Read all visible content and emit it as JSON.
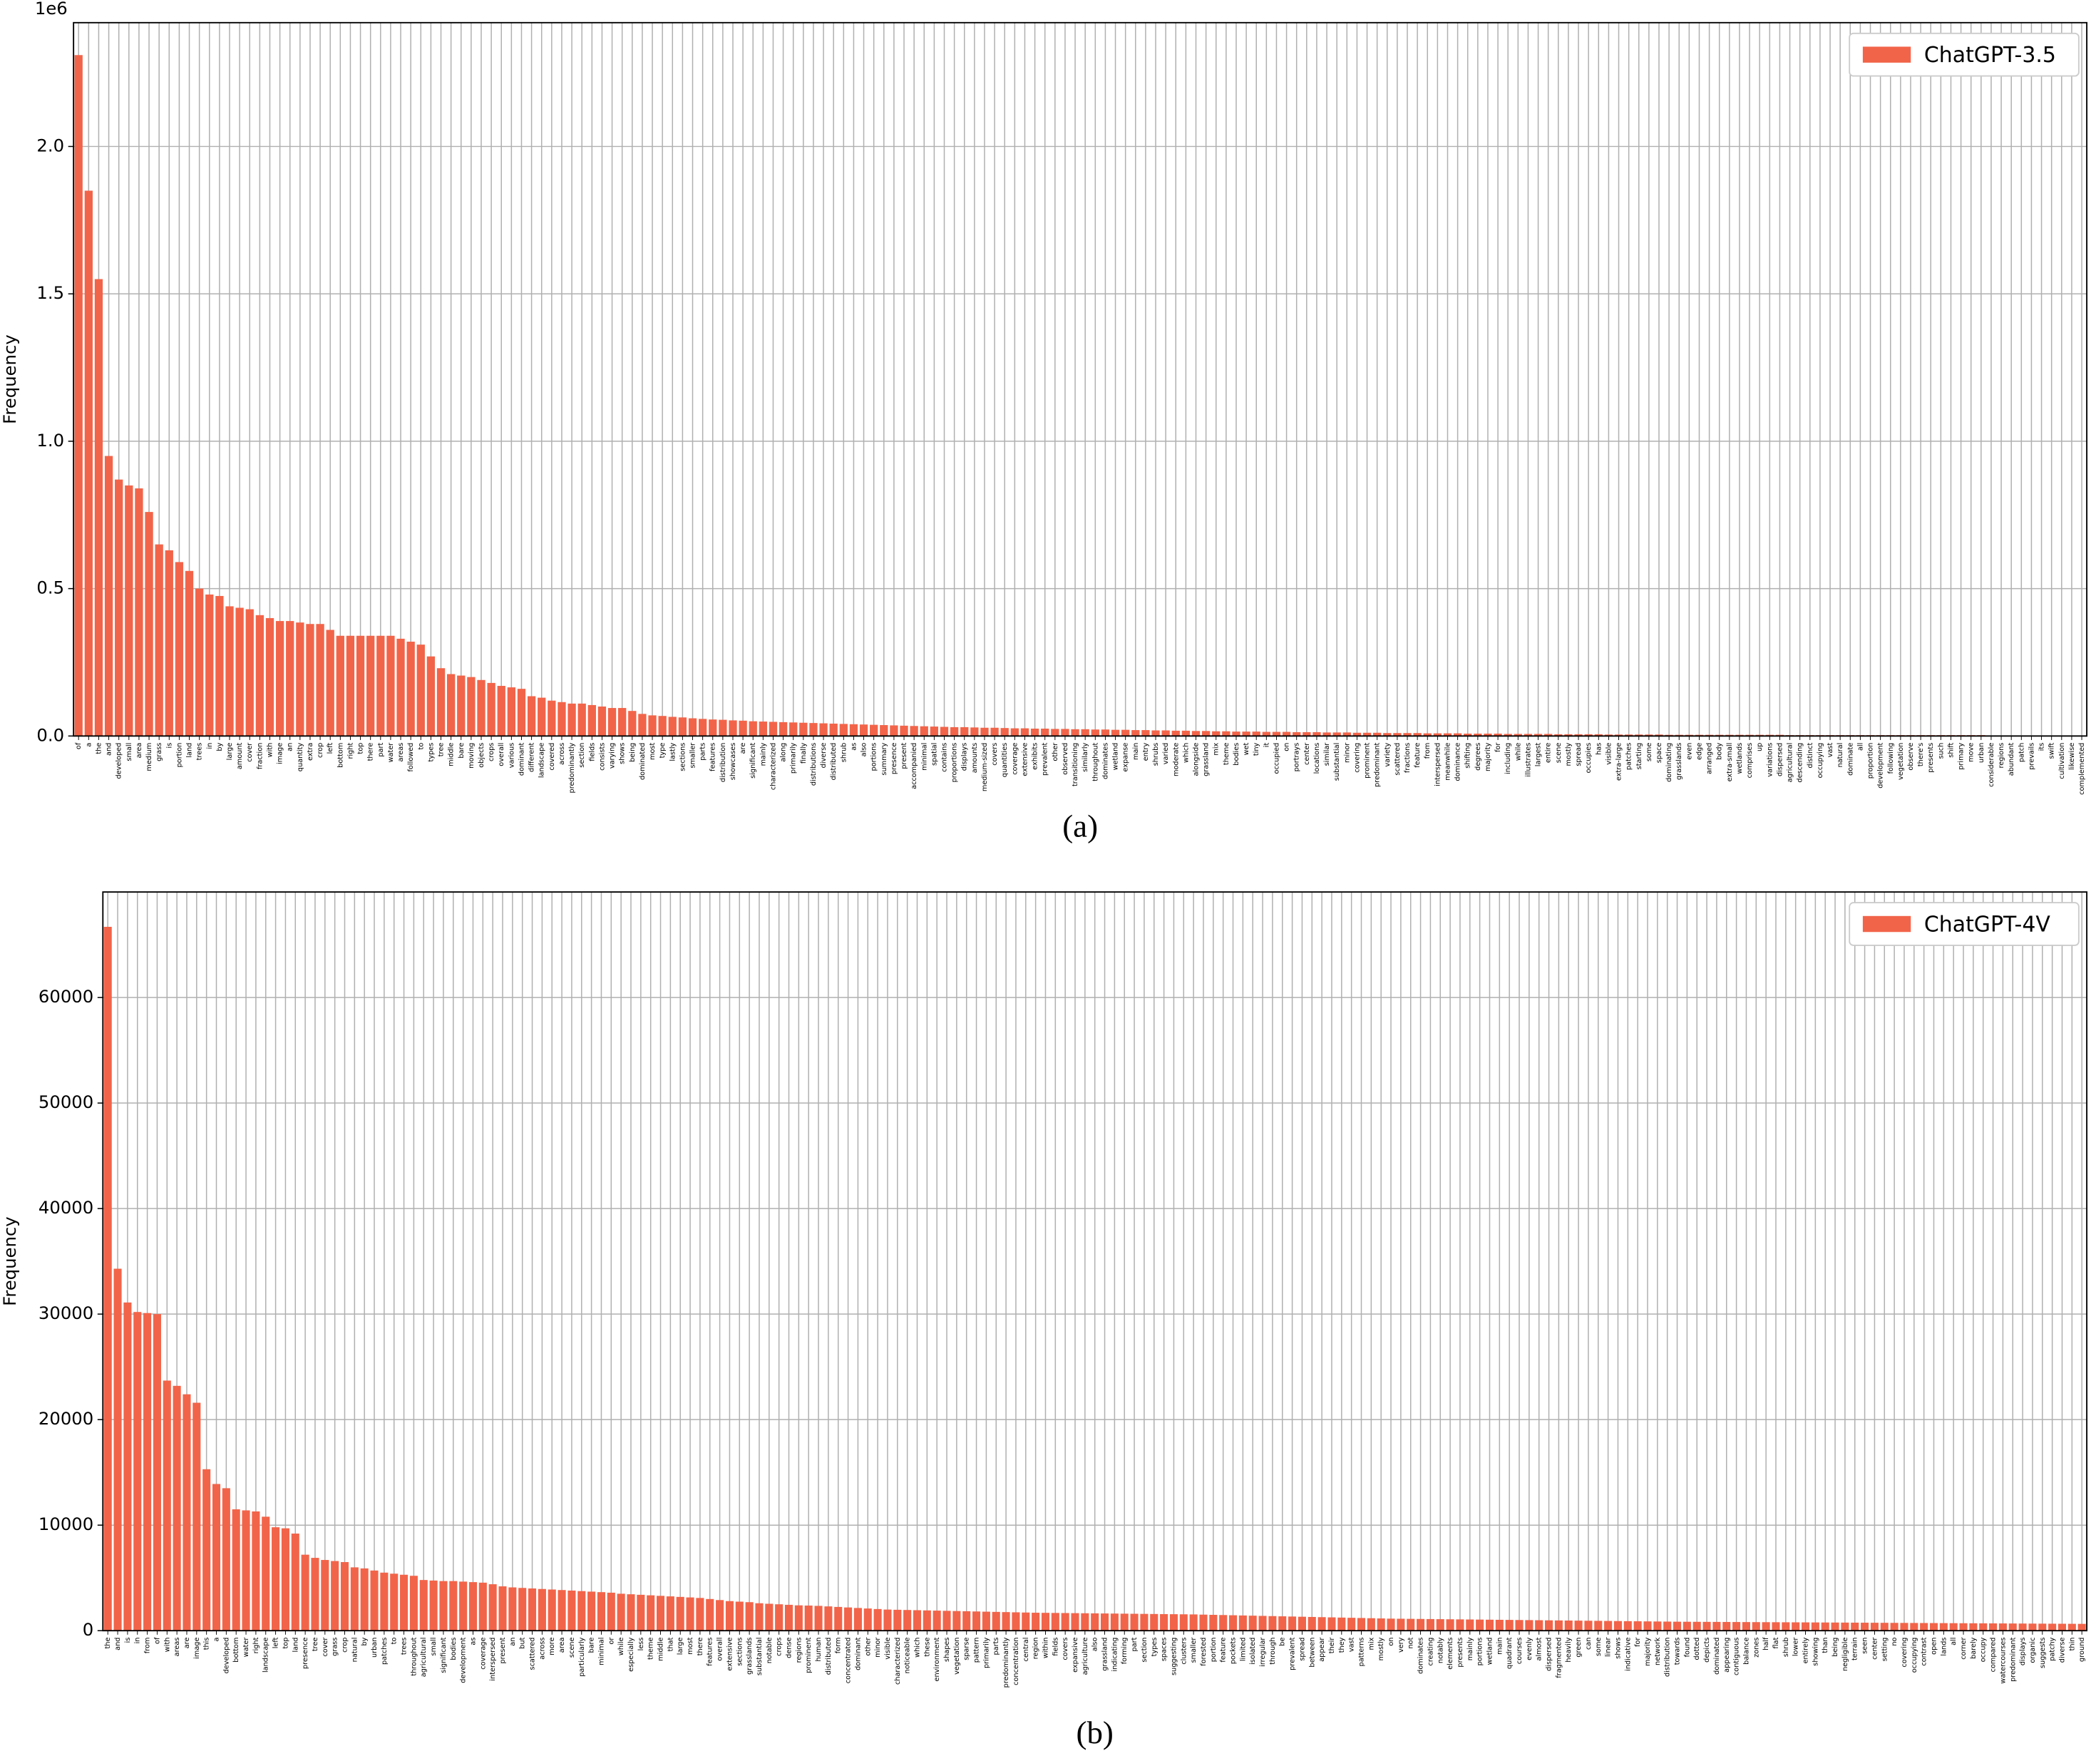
{
  "chart_data": [
    {
      "type": "bar",
      "ylabel": "Frequency",
      "offset_label": "1e6",
      "caption": "(a)",
      "legend": "upper right",
      "grid": true,
      "ylim": [
        0,
        2.42
      ],
      "yticks": [
        {
          "value": 0,
          "label": "0.0"
        },
        0.5,
        {
          "value": 1,
          "label": "1.0"
        },
        1.5,
        {
          "value": 2,
          "label": "2.0"
        }
      ],
      "categories": [
        "of",
        "a",
        "the",
        "and",
        "developed",
        "small",
        "area",
        "medium",
        "grass",
        "is",
        "portion",
        "land",
        "trees",
        "in",
        "by",
        "large",
        "amount",
        "cover",
        "fraction",
        "with",
        "image",
        "an",
        "quantity",
        "extra",
        "crop",
        "left",
        "bottom",
        "right",
        "top",
        "there",
        "part",
        "water",
        "areas",
        "followed",
        "to",
        "types",
        "tree",
        "middle",
        "bare",
        "moving",
        "objects",
        "crops",
        "overall",
        "various",
        "dominant",
        "different",
        "landscape",
        "covered",
        "across",
        "predominantly",
        "section",
        "fields",
        "consists",
        "varying",
        "shows",
        "being",
        "dominated",
        "most",
        "type",
        "lastly",
        "sections",
        "smaller",
        "parts",
        "features",
        "distribution",
        "showcases",
        "are",
        "significant",
        "mainly",
        "characterized",
        "along",
        "primarily",
        "finally",
        "distributions",
        "diverse",
        "distributed",
        "shrub",
        "as",
        "also",
        "portions",
        "summary",
        "presence",
        "present",
        "accompanied",
        "minimal",
        "spatial",
        "contains",
        "proportions",
        "displays",
        "amounts",
        "medium-sized",
        "covers",
        "quantities",
        "coverage",
        "extensive",
        "exhibits",
        "prevalent",
        "other",
        "observed",
        "transitioning",
        "similarly",
        "throughout",
        "dominates",
        "wetland",
        "expanse",
        "main",
        "entry",
        "shrubs",
        "varied",
        "moderate",
        "which",
        "alongside",
        "grassland",
        "mix",
        "theme",
        "bodies",
        "wet",
        "tiny",
        "it",
        "occupied",
        "on",
        "portrays",
        "center",
        "locations",
        "similar",
        "substantial",
        "minor",
        "covering",
        "prominent",
        "predominant",
        "variety",
        "scattered",
        "fractions",
        "feature",
        "from",
        "interspersed",
        "meanwhile",
        "dominance",
        "shifting",
        "degrees",
        "majority",
        "for",
        "including",
        "while",
        "illustrates",
        "largest",
        "entire",
        "scene",
        "mostly",
        "spread",
        "occupies",
        "has",
        "visible",
        "extra-large",
        "patches",
        "starting",
        "some",
        "space",
        "dominating",
        "grasslands",
        "even",
        "edge",
        "arranged",
        "body",
        "extra-small",
        "wetlands",
        "comprises",
        "up",
        "variations",
        "dispersed",
        "agricultural",
        "descending",
        "distinct",
        "occupying",
        "vast",
        "natural",
        "dominate",
        "all",
        "proportion",
        "development",
        "following",
        "vegetation",
        "observe",
        "there's",
        "presents",
        "such",
        "shift",
        "primary",
        "move",
        "urban",
        "considerable",
        "regions",
        "abundant",
        "patch",
        "prevails",
        "its",
        "swift",
        "cultivation",
        "likewise",
        "complemented"
      ],
      "series": [
        {
          "name": "ChatGPT-3.5",
          "color": "#f26449",
          "values": [
            2.31,
            1.85,
            1.55,
            0.95,
            0.87,
            0.85,
            0.84,
            0.76,
            0.65,
            0.63,
            0.59,
            0.56,
            0.5,
            0.48,
            0.475,
            0.44,
            0.435,
            0.43,
            0.41,
            0.4,
            0.39,
            0.39,
            0.385,
            0.38,
            0.38,
            0.36,
            0.34,
            0.34,
            0.34,
            0.34,
            0.34,
            0.34,
            0.33,
            0.32,
            0.31,
            0.27,
            0.23,
            0.21,
            0.205,
            0.2,
            0.19,
            0.18,
            0.17,
            0.165,
            0.16,
            0.135,
            0.13,
            0.12,
            0.115,
            0.11,
            0.11,
            0.105,
            0.1,
            0.095,
            0.095,
            0.085,
            0.075,
            0.07,
            0.068,
            0.065,
            0.063,
            0.06,
            0.058,
            0.056,
            0.055,
            0.053,
            0.052,
            0.05,
            0.049,
            0.048,
            0.047,
            0.046,
            0.045,
            0.044,
            0.043,
            0.042,
            0.041,
            0.04,
            0.039,
            0.038,
            0.037,
            0.036,
            0.035,
            0.034,
            0.033,
            0.032,
            0.031,
            0.03,
            0.03,
            0.029,
            0.028,
            0.028,
            0.027,
            0.026,
            0.026,
            0.025,
            0.025,
            0.024,
            0.024,
            0.023,
            0.023,
            0.022,
            0.022,
            0.021,
            0.021,
            0.02,
            0.02,
            0.019,
            0.019,
            0.018,
            0.018,
            0.017,
            0.017,
            0.016,
            0.016,
            0.015,
            0.015,
            0.015,
            0.014,
            0.014,
            0.014,
            0.013,
            0.013,
            0.013,
            0.012,
            0.012,
            0.012,
            0.011,
            0.011,
            0.011,
            0.01,
            0.01,
            0.01,
            0.01,
            0.009,
            0.009,
            0.009,
            0.009,
            0.008,
            0.008,
            0.008,
            0.008,
            0.007,
            0.007,
            0.007,
            0.007,
            0.007,
            0.006,
            0.006,
            0.006,
            0.006,
            0.006,
            0.005,
            0.005,
            0.005,
            0.005,
            0.005,
            0.005,
            0.004,
            0.004,
            0.004,
            0.004,
            0.004,
            0.004,
            0.004,
            0.004,
            0.004,
            0.004,
            0.004,
            0.004,
            0.003,
            0.003,
            0.003,
            0.003,
            0.003,
            0.003,
            0.003,
            0.003,
            0.003,
            0.003,
            0.003,
            0.003,
            0.003,
            0.003,
            0.003,
            0.003,
            0.003,
            0.003,
            0.003,
            0.003,
            0.002,
            0.002,
            0.002,
            0.002,
            0.002,
            0.002,
            0.002,
            0.002,
            0.002,
            0.002
          ]
        }
      ]
    },
    {
      "type": "bar",
      "ylabel": "Frequency",
      "caption": "(b)",
      "legend": "upper right",
      "grid": true,
      "ylim": [
        0,
        70000
      ],
      "yticks": [
        0,
        10000,
        20000,
        30000,
        40000,
        50000,
        60000
      ],
      "categories": [
        "the",
        "and",
        "is",
        "in",
        "from",
        "of",
        "with",
        "areas",
        "are",
        "image",
        "this",
        "a",
        "developed",
        "bottom",
        "water",
        "right",
        "landscape",
        "left",
        "top",
        "land",
        "presence",
        "tree",
        "cover",
        "grass",
        "crop",
        "natural",
        "by",
        "urban",
        "patches",
        "to",
        "trees",
        "throughout",
        "agricultural",
        "small",
        "significant",
        "bodies",
        "development",
        "as",
        "coverage",
        "interspersed",
        "present",
        "an",
        "but",
        "scattered",
        "across",
        "more",
        "area",
        "scene",
        "particularly",
        "bare",
        "minimal",
        "or",
        "while",
        "especially",
        "less",
        "theme",
        "middle",
        "that",
        "large",
        "most",
        "there",
        "features",
        "overall",
        "extensive",
        "sections",
        "grasslands",
        "substantial",
        "notable",
        "crops",
        "dense",
        "regions",
        "prominent",
        "human",
        "distributed",
        "form",
        "concentrated",
        "dominant",
        "other",
        "minor",
        "visible",
        "characterized",
        "noticeable",
        "which",
        "these",
        "environment",
        "shapes",
        "vegetation",
        "sparse",
        "pattern",
        "primarily",
        "parts",
        "predominantly",
        "concentration",
        "central",
        "region",
        "within",
        "fields",
        "covers",
        "expansive",
        "agriculture",
        "also",
        "grassland",
        "indicating",
        "forming",
        "part",
        "section",
        "types",
        "spaces",
        "suggesting",
        "clusters",
        "smaller",
        "forested",
        "portion",
        "feature",
        "pockets",
        "limited",
        "isolated",
        "irregular",
        "through",
        "be",
        "prevalent",
        "spread",
        "between",
        "appear",
        "their",
        "they",
        "vast",
        "patterns",
        "mix",
        "mostly",
        "on",
        "very",
        "not",
        "dominates",
        "creating",
        "notably",
        "elements",
        "presents",
        "mainly",
        "portions",
        "wetland",
        "main",
        "quadrant",
        "courses",
        "evenly",
        "almost",
        "dispersed",
        "fragmented",
        "heavily",
        "green",
        "can",
        "some",
        "linear",
        "shows",
        "indicative",
        "for",
        "majority",
        "network",
        "distribution",
        "towards",
        "found",
        "dotted",
        "depicts",
        "dominated",
        "appearing",
        "contiguous",
        "balance",
        "zones",
        "half",
        "flat",
        "shrub",
        "lower",
        "entirely",
        "showing",
        "than",
        "being",
        "negligible",
        "terrain",
        "seen",
        "center",
        "setting",
        "no",
        "covering",
        "occupying",
        "contrast",
        "open",
        "lands",
        "all",
        "corner",
        "barely",
        "occupy",
        "compared",
        "watercourses",
        "predominant",
        "displays",
        "organic",
        "suggests",
        "patchy",
        "diverse",
        "thin",
        "ground"
      ],
      "series": [
        {
          "name": "ChatGPT-4V",
          "color": "#f26449",
          "values": [
            66700,
            34300,
            31100,
            30200,
            30100,
            30000,
            23700,
            23200,
            22400,
            21600,
            15300,
            13900,
            13500,
            11500,
            11400,
            11300,
            10800,
            9800,
            9700,
            9200,
            7200,
            6900,
            6700,
            6600,
            6500,
            6000,
            5900,
            5700,
            5500,
            5400,
            5300,
            5200,
            4800,
            4750,
            4700,
            4700,
            4650,
            4600,
            4550,
            4400,
            4200,
            4100,
            4050,
            4000,
            3950,
            3900,
            3850,
            3800,
            3750,
            3700,
            3650,
            3600,
            3500,
            3450,
            3400,
            3350,
            3300,
            3250,
            3200,
            3150,
            3100,
            3000,
            2900,
            2800,
            2750,
            2700,
            2600,
            2550,
            2500,
            2450,
            2400,
            2380,
            2350,
            2300,
            2250,
            2200,
            2150,
            2100,
            2050,
            2000,
            1980,
            1960,
            1940,
            1920,
            1900,
            1880,
            1860,
            1840,
            1820,
            1800,
            1780,
            1760,
            1740,
            1720,
            1700,
            1690,
            1680,
            1670,
            1660,
            1650,
            1640,
            1630,
            1620,
            1610,
            1600,
            1590,
            1580,
            1570,
            1560,
            1550,
            1540,
            1520,
            1500,
            1480,
            1460,
            1440,
            1420,
            1400,
            1380,
            1360,
            1340,
            1320,
            1300,
            1280,
            1260,
            1240,
            1220,
            1200,
            1180,
            1160,
            1140,
            1130,
            1120,
            1110,
            1100,
            1090,
            1080,
            1070,
            1060,
            1050,
            1040,
            1030,
            1020,
            1010,
            1000,
            990,
            980,
            970,
            960,
            950,
            940,
            930,
            920,
            910,
            900,
            890,
            880,
            870,
            860,
            850,
            845,
            840,
            835,
            830,
            825,
            820,
            815,
            810,
            805,
            800,
            795,
            790,
            785,
            780,
            775,
            770,
            765,
            760,
            755,
            750,
            745,
            740,
            735,
            730,
            725,
            720,
            715,
            710,
            705,
            700,
            695,
            690,
            685,
            680,
            675,
            670,
            665,
            660,
            655,
            650,
            645
          ]
        }
      ]
    }
  ]
}
